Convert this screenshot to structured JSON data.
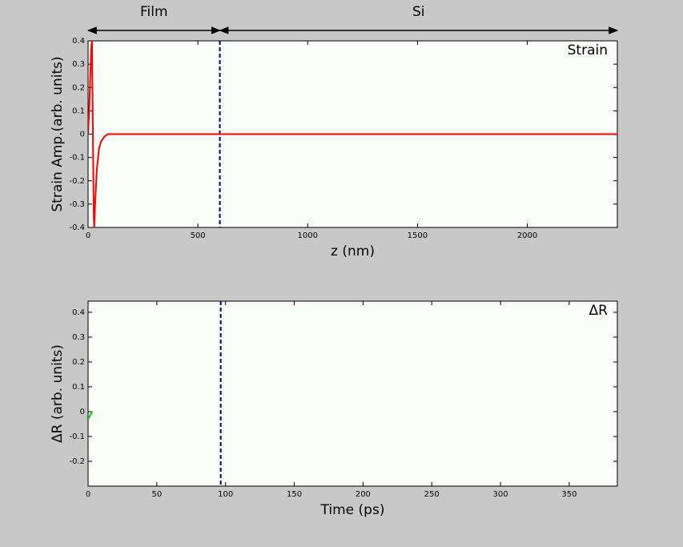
{
  "chart_data": [
    {
      "type": "line",
      "ylabel": "Strain Amp.(arb. units)",
      "xlabel": "z (nm)",
      "annotation": "Strain",
      "regions": [
        {
          "label": "Film",
          "range": [
            0,
            600
          ]
        },
        {
          "label": "Si",
          "range": [
            600,
            2410
          ]
        }
      ],
      "xlim": [
        0,
        2410
      ],
      "xticks": [
        0,
        500,
        1000,
        1500,
        2000
      ],
      "ylim": [
        -0.4,
        0.4
      ],
      "yticks": [
        -0.4,
        -0.3,
        -0.2,
        -0.1,
        0,
        0.1,
        0.2,
        0.3,
        0.4
      ],
      "vline": 600,
      "vline_color": "#000080",
      "series": [
        {
          "color": "#ff0000",
          "x": [
            0,
            5,
            10,
            15,
            18,
            20,
            23,
            26,
            28,
            32,
            40,
            50,
            60,
            75,
            90,
            110,
            2410
          ],
          "values": [
            0,
            0.1,
            0.25,
            0.38,
            0.4,
            0.2,
            -0.1,
            -0.35,
            -0.4,
            -0.3,
            -0.15,
            -0.06,
            -0.03,
            -0.01,
            0,
            0,
            0
          ]
        }
      ]
    },
    {
      "type": "line",
      "ylabel": "ΔR (arb. units)",
      "xlabel": "Time (ps)",
      "annotation": "ΔR",
      "xlim": [
        0,
        385
      ],
      "xticks": [
        0,
        50,
        100,
        150,
        200,
        250,
        300,
        350
      ],
      "ylim": [
        -0.3,
        0.445
      ],
      "yticks": [
        -0.2,
        -0.1,
        0,
        0.1,
        0.2,
        0.3,
        0.4
      ],
      "vline": 96.5,
      "vline_color": "#000080",
      "series": [
        {
          "color": "#00cc00",
          "x": [
            0,
            1,
            2,
            3
          ],
          "values": [
            -0.03,
            -0.02,
            -0.01,
            0.0
          ]
        }
      ]
    }
  ]
}
